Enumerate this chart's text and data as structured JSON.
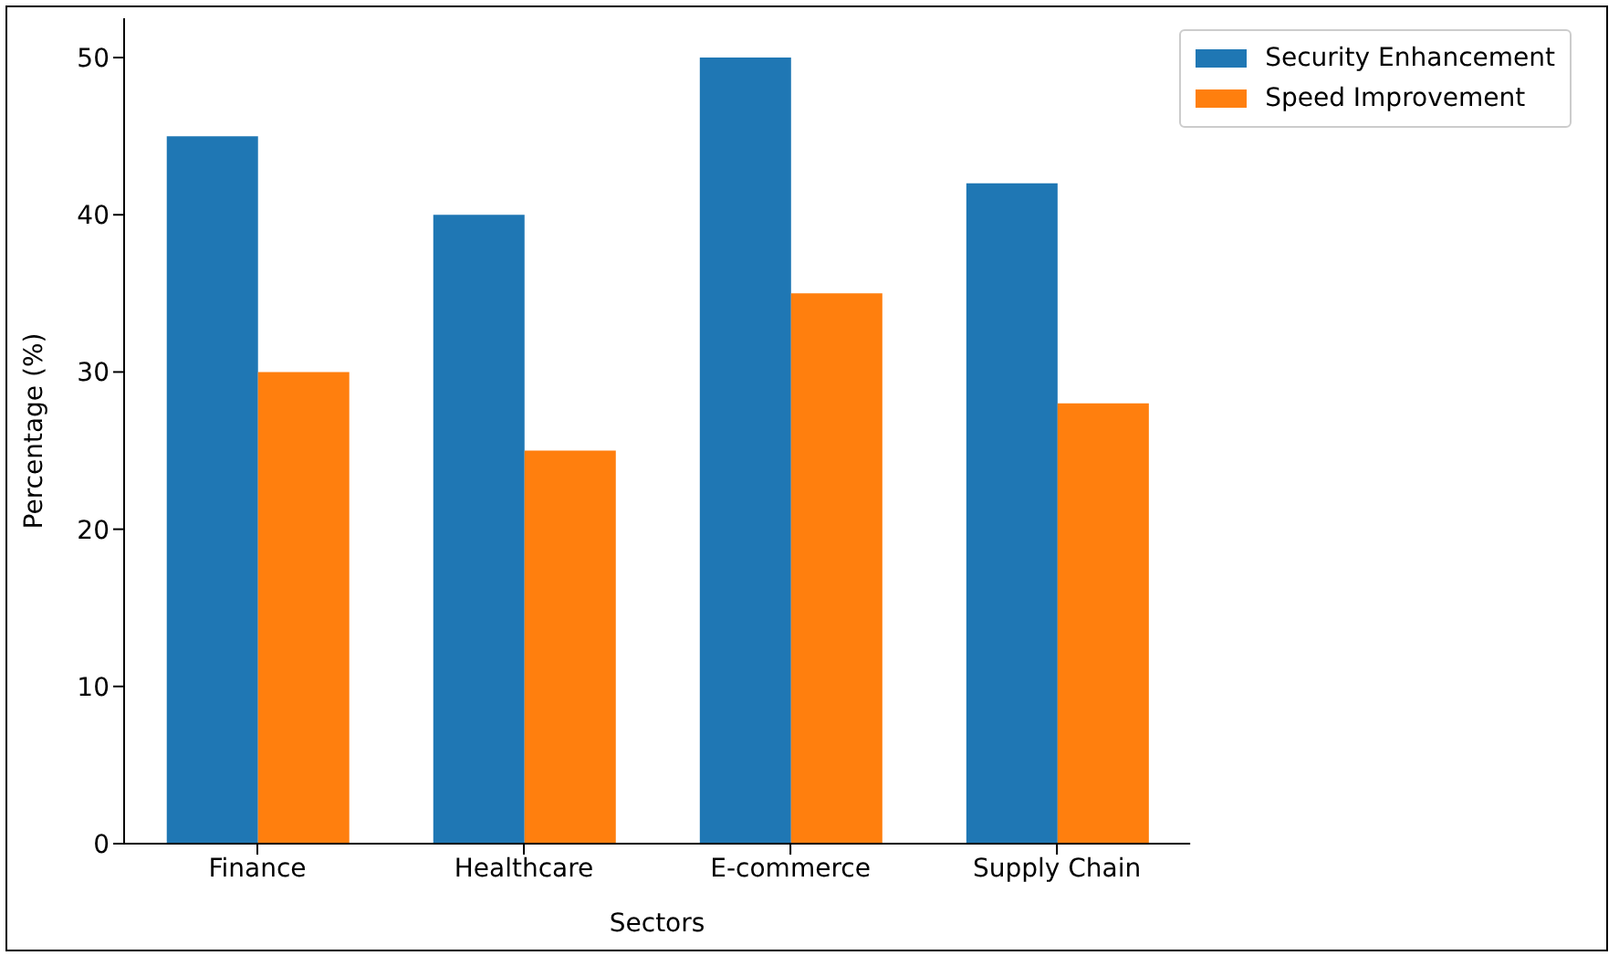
{
  "chart_data": {
    "type": "bar",
    "xlabel": "Sectors",
    "ylabel": "Percentage (%)",
    "categories": [
      "Finance",
      "Healthcare",
      "E-commerce",
      "Supply Chain"
    ],
    "series": [
      {
        "name": "Security Enhancement",
        "color": "#1f77b4",
        "values": [
          45,
          40,
          50,
          42
        ]
      },
      {
        "name": "Speed Improvement",
        "color": "#ff7f0e",
        "values": [
          30,
          25,
          35,
          28
        ]
      }
    ],
    "ylim": [
      0,
      52.5
    ],
    "yticks": [
      0,
      10,
      20,
      30,
      40,
      50
    ],
    "legend": "top right"
  }
}
